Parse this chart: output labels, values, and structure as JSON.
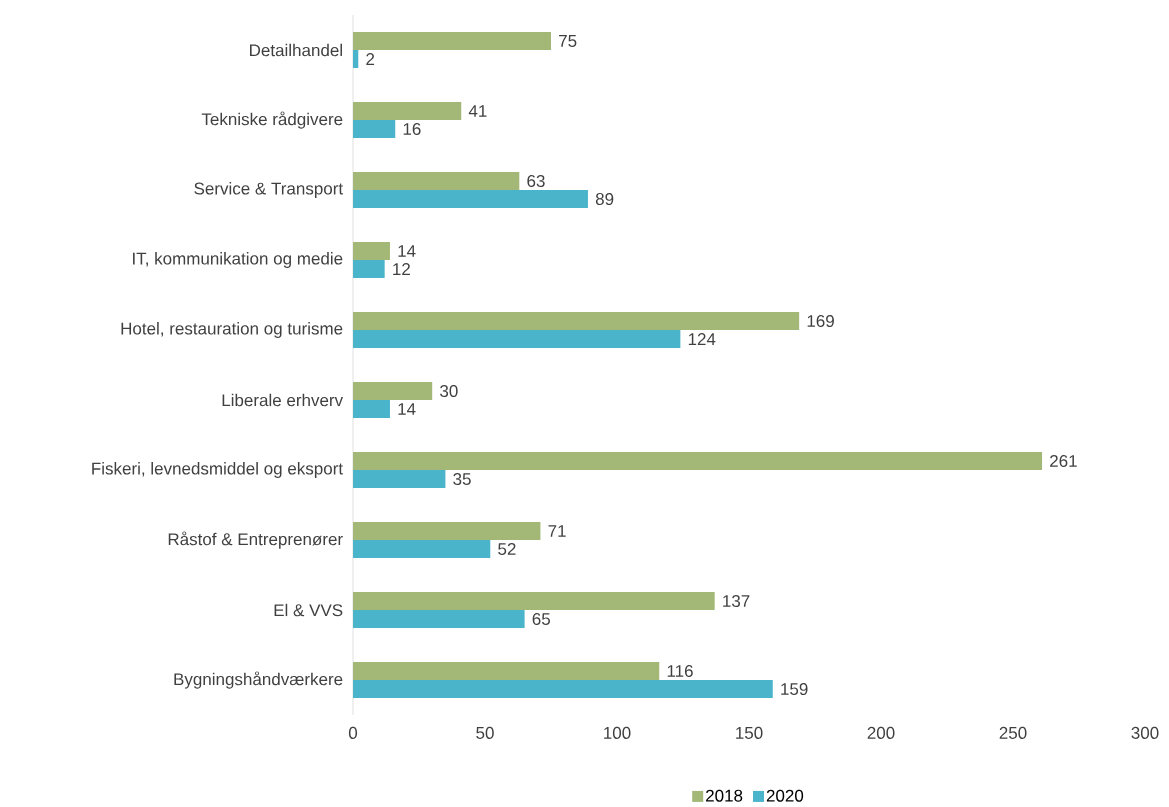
{
  "chart_data": {
    "type": "bar",
    "orientation": "horizontal",
    "categories": [
      "Detailhandel",
      "Tekniske rådgivere",
      "Service & Transport",
      "IT, kommunikation og medie",
      "Hotel, restauration og turisme",
      "Liberale erhverv",
      "Fiskeri, levnedsmiddel og eksport",
      "Råstof & Entreprenører",
      "El & VVS",
      "Bygningshåndværkere"
    ],
    "series": [
      {
        "name": "2018",
        "color": "#a3b877",
        "values": [
          75,
          41,
          63,
          14,
          169,
          30,
          261,
          71,
          137,
          116
        ]
      },
      {
        "name": "2020",
        "color": "#4ab4cb",
        "values": [
          2,
          16,
          89,
          12,
          124,
          14,
          35,
          52,
          65,
          159
        ]
      }
    ],
    "xlim": [
      0,
      300
    ],
    "xticks": [
      0,
      50,
      100,
      150,
      200,
      250,
      300
    ],
    "data_labels": true,
    "legend": "bottom",
    "grid": false
  }
}
